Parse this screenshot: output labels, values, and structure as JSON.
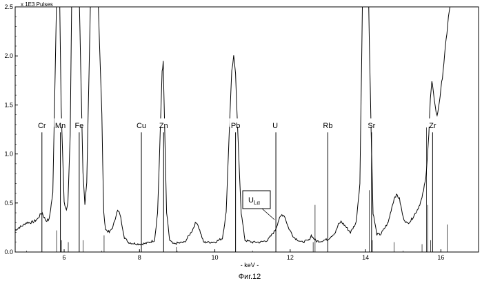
{
  "figure_caption": "Фиг.12",
  "chart_data": {
    "type": "line",
    "title": "",
    "xlabel": "- keV -",
    "ylabel": "x 1E3 Pulses",
    "xlim": [
      4.7,
      17.0
    ],
    "ylim": [
      0,
      2.5
    ],
    "x_ticks": [
      6,
      8,
      10,
      12,
      14,
      16
    ],
    "y_ticks": [
      0.0,
      0.5,
      1.0,
      1.5,
      2.0,
      2.5
    ],
    "y_tick_labels": [
      "0.0",
      "0.5",
      "1.0",
      "1.5",
      "2.0",
      "2.5"
    ],
    "grid": false,
    "series": [
      {
        "x": [
          4.7,
          4.8,
          4.9,
          5.0,
          5.1,
          5.2,
          5.3,
          5.38,
          5.42,
          5.46,
          5.52,
          5.6,
          5.7,
          5.76,
          5.8,
          5.85,
          5.88,
          5.92,
          6.0,
          6.06,
          6.1,
          6.16,
          6.2,
          6.3,
          6.4,
          6.5,
          6.55,
          6.6,
          6.7,
          6.8,
          6.9,
          7.0,
          7.05,
          7.1,
          7.2,
          7.3,
          7.38,
          7.42,
          7.48,
          7.55,
          7.6,
          7.7,
          7.8,
          8.0,
          8.2,
          8.4,
          8.48,
          8.55,
          8.6,
          8.63,
          8.66,
          8.72,
          8.8,
          8.9,
          9.0,
          9.2,
          9.4,
          9.48,
          9.53,
          9.6,
          9.7,
          9.8,
          10.0,
          10.2,
          10.3,
          10.4,
          10.45,
          10.5,
          10.55,
          10.6,
          10.7,
          10.8,
          11.0,
          11.2,
          11.4,
          11.6,
          11.7,
          11.78,
          11.85,
          11.95,
          12.1,
          12.3,
          12.5,
          12.56,
          12.62,
          12.7,
          12.8,
          13.0,
          13.2,
          13.28,
          13.35,
          13.45,
          13.6,
          13.75,
          13.85,
          13.92,
          14.0,
          14.08,
          14.15,
          14.2,
          14.3,
          14.4,
          14.5,
          14.6,
          14.7,
          14.78,
          14.84,
          14.9,
          15.0,
          15.1,
          15.2,
          15.3,
          15.4,
          15.5,
          15.6,
          15.68,
          15.72,
          15.76,
          15.8,
          15.85,
          15.9,
          16.0,
          16.1,
          16.2,
          16.28
        ],
        "y": [
          0.22,
          0.25,
          0.27,
          0.3,
          0.3,
          0.31,
          0.34,
          0.39,
          0.4,
          0.36,
          0.32,
          0.33,
          0.6,
          1.8,
          2.6,
          2.6,
          2.6,
          1.5,
          0.5,
          0.43,
          0.5,
          1.2,
          2.6,
          2.6,
          2.6,
          0.8,
          0.47,
          0.7,
          2.6,
          2.6,
          2.6,
          1.4,
          0.4,
          0.23,
          0.2,
          0.26,
          0.38,
          0.42,
          0.39,
          0.25,
          0.15,
          0.1,
          0.09,
          0.08,
          0.09,
          0.12,
          0.4,
          1.2,
          1.85,
          1.93,
          1.4,
          0.4,
          0.12,
          0.08,
          0.09,
          0.1,
          0.22,
          0.29,
          0.3,
          0.22,
          0.1,
          0.1,
          0.1,
          0.14,
          0.4,
          1.4,
          1.85,
          2.0,
          1.8,
          1.3,
          0.4,
          0.12,
          0.1,
          0.1,
          0.12,
          0.22,
          0.33,
          0.38,
          0.37,
          0.25,
          0.15,
          0.1,
          0.12,
          0.17,
          0.14,
          0.11,
          0.11,
          0.13,
          0.2,
          0.28,
          0.31,
          0.27,
          0.2,
          0.3,
          0.7,
          2.6,
          2.6,
          2.6,
          1.2,
          0.4,
          0.18,
          0.18,
          0.24,
          0.3,
          0.46,
          0.57,
          0.58,
          0.54,
          0.35,
          0.29,
          0.32,
          0.38,
          0.45,
          0.55,
          0.75,
          1.2,
          1.56,
          1.72,
          1.65,
          1.48,
          1.38,
          1.65,
          2.0,
          2.4,
          2.6
        ]
      }
    ],
    "element_markers": [
      {
        "label": "Cr",
        "x": 5.41,
        "height": 1.22
      },
      {
        "label": "Mn",
        "x": 5.9,
        "height": 1.22
      },
      {
        "label": "Fe",
        "x": 6.4,
        "height": 1.22
      },
      {
        "label": "Cu",
        "x": 8.05,
        "height": 1.22
      },
      {
        "label": "Zn",
        "x": 8.64,
        "height": 1.22
      },
      {
        "label": "Pb",
        "x": 10.55,
        "height": 1.22
      },
      {
        "label": "U",
        "x": 11.62,
        "height": 1.22
      },
      {
        "label": "Rb",
        "x": 13.0,
        "height": 1.22
      },
      {
        "label": "Sr",
        "x": 14.16,
        "height": 1.22
      },
      {
        "label": "Zr",
        "x": 15.78,
        "height": 1.22
      }
    ],
    "extra_lines": [
      {
        "x": 5.8,
        "height": 0.22
      },
      {
        "x": 5.93,
        "height": 0.12
      },
      {
        "x": 6.11,
        "height": 0.1
      },
      {
        "x": 6.5,
        "height": 0.12
      },
      {
        "x": 7.06,
        "height": 0.17
      },
      {
        "x": 8.98,
        "height": 0.05
      },
      {
        "x": 12.66,
        "height": 0.48
      },
      {
        "x": 12.61,
        "height": 0.1
      },
      {
        "x": 14.1,
        "height": 0.63
      },
      {
        "x": 14.18,
        "height": 0.12
      },
      {
        "x": 14.76,
        "height": 0.1
      },
      {
        "x": 15.5,
        "height": 0.08
      },
      {
        "x": 15.62,
        "height": 1.27
      },
      {
        "x": 15.65,
        "height": 0.48
      },
      {
        "x": 15.73,
        "height": 0.12
      },
      {
        "x": 16.17,
        "height": 0.28
      }
    ],
    "annotation": {
      "main": "U",
      "sub": "Lα",
      "x": 11.62,
      "y": 0.33
    }
  }
}
